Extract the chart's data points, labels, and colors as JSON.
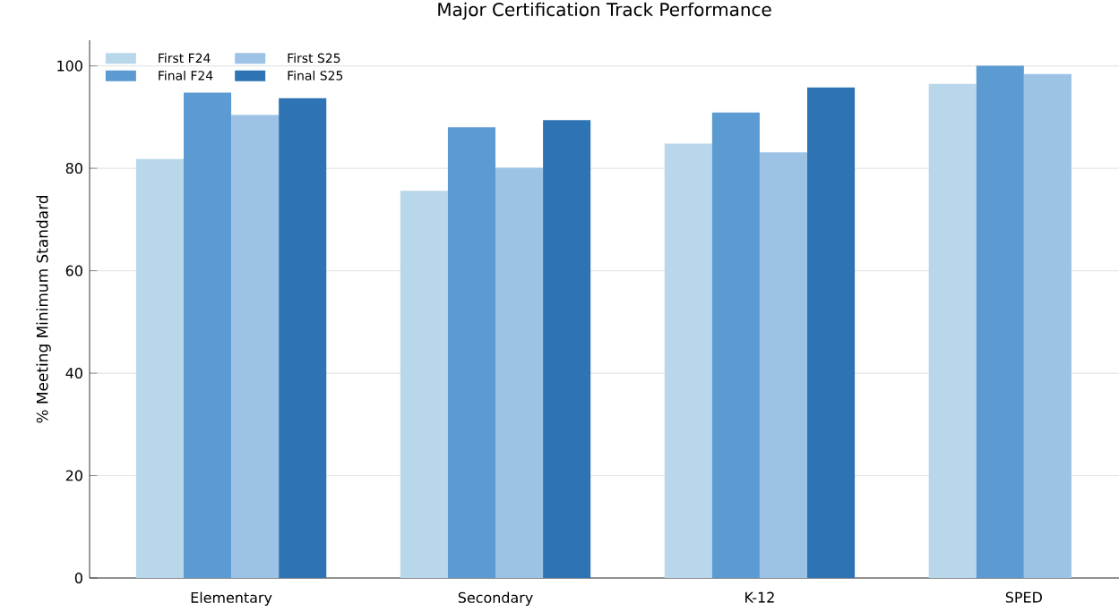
{
  "chart_data": {
    "type": "bar",
    "title": "Major Certification Track Performance",
    "ylabel": "% Meeting Minimum Standard",
    "categories": [
      "Elementary",
      "Secondary",
      "K-12",
      "SPED"
    ],
    "series": [
      {
        "name": "First F24",
        "color": "#b8d7ea",
        "values": [
          81.8,
          75.6,
          84.8,
          96.5
        ]
      },
      {
        "name": "Final F24",
        "color": "#5b9bd2",
        "values": [
          94.8,
          88.0,
          90.9,
          100
        ]
      },
      {
        "name": "First S25",
        "color": "#9cc2e5",
        "values": [
          90.4,
          80.1,
          83.1,
          98.4
        ]
      },
      {
        "name": "Final S25",
        "color": "#2e73b3",
        "values": [
          93.7,
          89.4,
          95.8,
          null
        ]
      }
    ],
    "ylim": [
      0,
      105
    ],
    "yticks": [
      0,
      20,
      40,
      60,
      80,
      100
    ],
    "grid": "y",
    "legend": "top left"
  }
}
